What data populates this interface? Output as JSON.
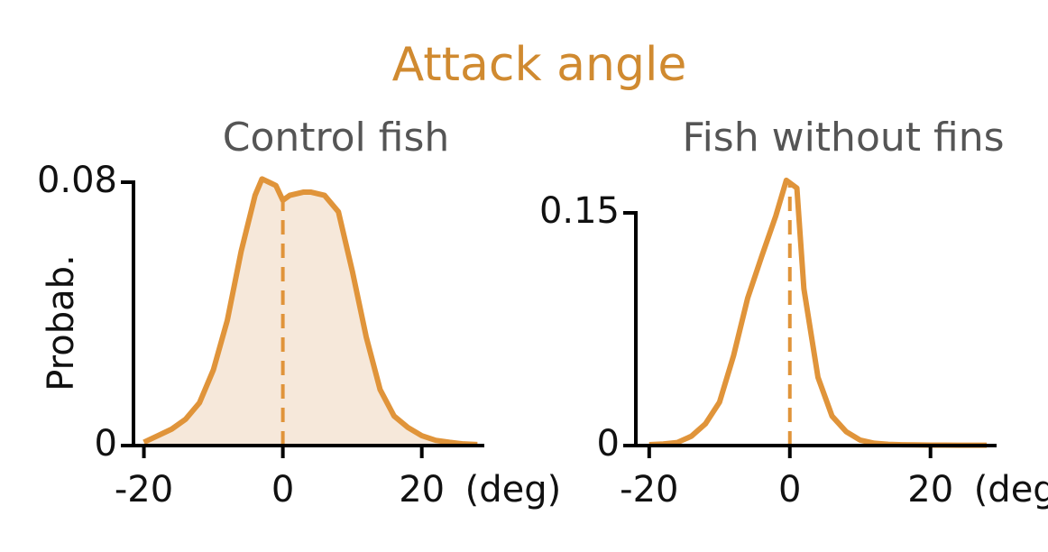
{
  "title": "Attack angle",
  "chart_data": [
    {
      "type": "area",
      "subtitle": "Control fish",
      "ylabel": "Probab.",
      "xlabel": "(deg)",
      "color": "#e0943a",
      "fill": "#f6e8da",
      "vline": 0,
      "x": [
        -20,
        -18,
        -16,
        -14,
        -12,
        -10,
        -8,
        -6,
        -4,
        -3,
        -2,
        -1,
        0,
        1,
        3,
        4,
        6,
        8,
        10,
        12,
        14,
        16,
        18,
        20,
        22,
        24,
        26,
        28
      ],
      "values": [
        0.001,
        0.003,
        0.005,
        0.008,
        0.013,
        0.023,
        0.038,
        0.059,
        0.076,
        0.081,
        0.08,
        0.079,
        0.0745,
        0.076,
        0.077,
        0.077,
        0.076,
        0.071,
        0.053,
        0.033,
        0.017,
        0.009,
        0.0055,
        0.003,
        0.0016,
        0.001,
        0.0005,
        0.0003
      ],
      "xlim": [
        -21.5,
        29
      ],
      "xticks": [
        -20,
        0,
        20
      ],
      "ylim": [
        0,
        0.08
      ],
      "yticks": [
        0,
        0.08
      ]
    },
    {
      "type": "line",
      "subtitle": "Fish without fins",
      "xlabel": "(deg)",
      "color": "#e0943a",
      "vline": 0,
      "x": [
        -20,
        -18,
        -16,
        -14,
        -12,
        -10,
        -8,
        -6,
        -4,
        -2,
        -0.5,
        1,
        2,
        4,
        6,
        8,
        10,
        12,
        14,
        16,
        18,
        20,
        22,
        24,
        26,
        28
      ],
      "values": [
        0.0006,
        0.001,
        0.002,
        0.006,
        0.014,
        0.028,
        0.058,
        0.095,
        0.122,
        0.148,
        0.171,
        0.166,
        0.101,
        0.044,
        0.019,
        0.009,
        0.0035,
        0.0015,
        0.0008,
        0.0005,
        0.0004,
        0.0003,
        0.0003,
        0.0002,
        0.0002,
        0.0002
      ],
      "xlim": [
        -21.9,
        29.4
      ],
      "xticks": [
        -20,
        0,
        20
      ],
      "ylim": [
        0,
        0.15
      ],
      "yticks": [
        0,
        0.15
      ]
    }
  ]
}
